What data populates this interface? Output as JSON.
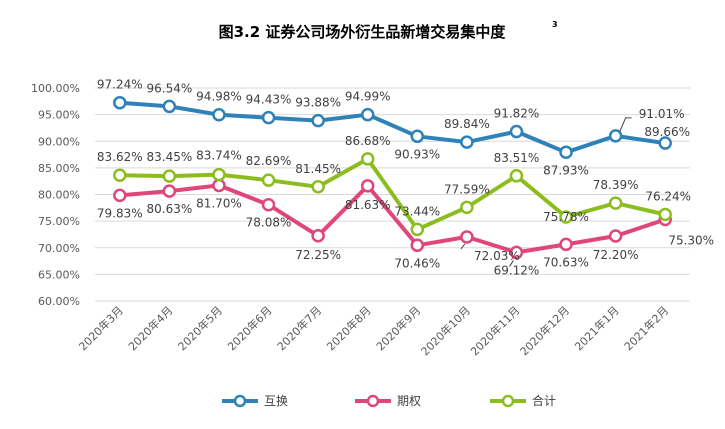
{
  "chart_data": {
    "type": "line",
    "title": "图3.2 证券公司场外衍生品新增交易集中度",
    "title_superscript": "3",
    "categories": [
      "2020年3月",
      "2020年4月",
      "2020年5月",
      "2020年6月",
      "2020年7月",
      "2020年8月",
      "2020年9月",
      "2020年10月",
      "2020年11月",
      "2020年12月",
      "2021年1月",
      "2021年2月"
    ],
    "ylim": [
      60,
      100
    ],
    "yticks": [
      60,
      65,
      70,
      75,
      80,
      85,
      90,
      95,
      100
    ],
    "ytick_labels": [
      "60.00%",
      "65.00%",
      "70.00%",
      "75.00%",
      "80.00%",
      "85.00%",
      "90.00%",
      "95.00%",
      "100.00%"
    ],
    "grid": true,
    "legend_position": "bottom",
    "xlabel": "",
    "ylabel": "",
    "series": [
      {
        "name": "互换",
        "color": "#2e82b8",
        "values": [
          97.24,
          96.54,
          94.98,
          94.43,
          93.88,
          94.99,
          90.93,
          89.84,
          91.82,
          87.93,
          91.01,
          89.66
        ],
        "labels": [
          "97.24%",
          "96.54%",
          "94.98%",
          "94.43%",
          "93.88%",
          "94.99%",
          "90.93%",
          "89.84%",
          "91.82%",
          "87.93%",
          "91.01%",
          "89.66%"
        ]
      },
      {
        "name": "期权",
        "color": "#e0457b",
        "values": [
          79.83,
          80.63,
          81.7,
          78.08,
          72.25,
          81.63,
          70.46,
          72.03,
          69.12,
          70.63,
          72.2,
          75.3
        ],
        "labels": [
          "79.83%",
          "80.63%",
          "81.70%",
          "78.08%",
          "72.25%",
          "81.63%",
          "70.46%",
          "72.03%",
          "69.12%",
          "70.63%",
          "72.20%",
          "75.30%"
        ]
      },
      {
        "name": "合计",
        "color": "#8cbd1f",
        "values": [
          83.62,
          83.45,
          83.74,
          82.69,
          81.45,
          86.68,
          73.44,
          77.59,
          83.51,
          75.78,
          78.39,
          76.24
        ],
        "labels": [
          "83.62%",
          "83.45%",
          "83.74%",
          "82.69%",
          "81.45%",
          "86.68%",
          "73.44%",
          "77.59%",
          "83.51%",
          "75.78%",
          "78.39%",
          "76.24%"
        ]
      }
    ]
  }
}
